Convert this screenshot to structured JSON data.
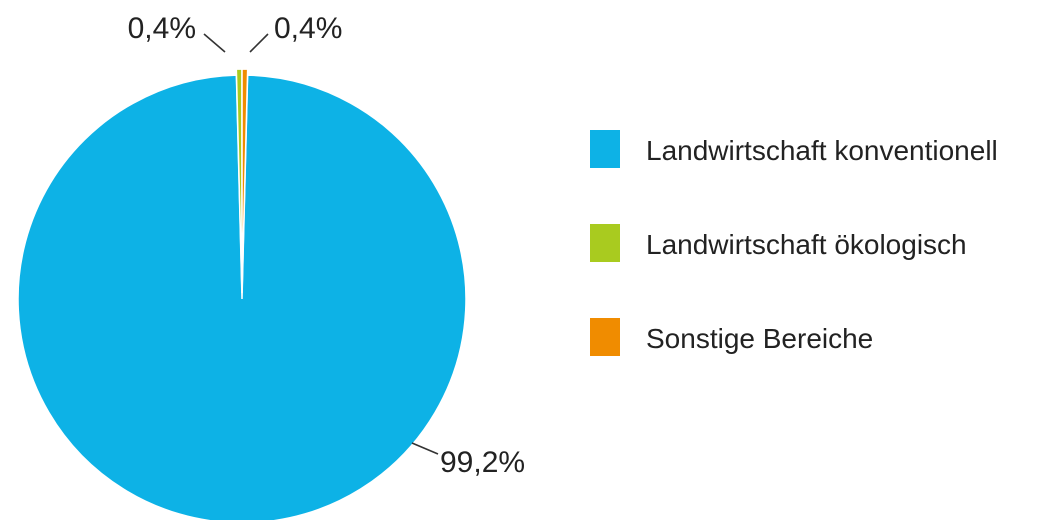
{
  "chart_data": {
    "type": "pie",
    "title": "",
    "slices": [
      {
        "label": "Landwirtschaft konventionell",
        "value": 99.2,
        "display": "99,2%",
        "color": "#0db2e6"
      },
      {
        "label": "Landwirtschaft ökologisch",
        "value": 0.4,
        "display": "0,4%",
        "color": "#a9cb1f"
      },
      {
        "label": "Sonstige Bereiche",
        "value": 0.4,
        "display": "0,4%",
        "color": "#f08c00"
      }
    ],
    "start_angle_deg": 0,
    "direction": "counterclockwise",
    "legend_position": "right"
  }
}
